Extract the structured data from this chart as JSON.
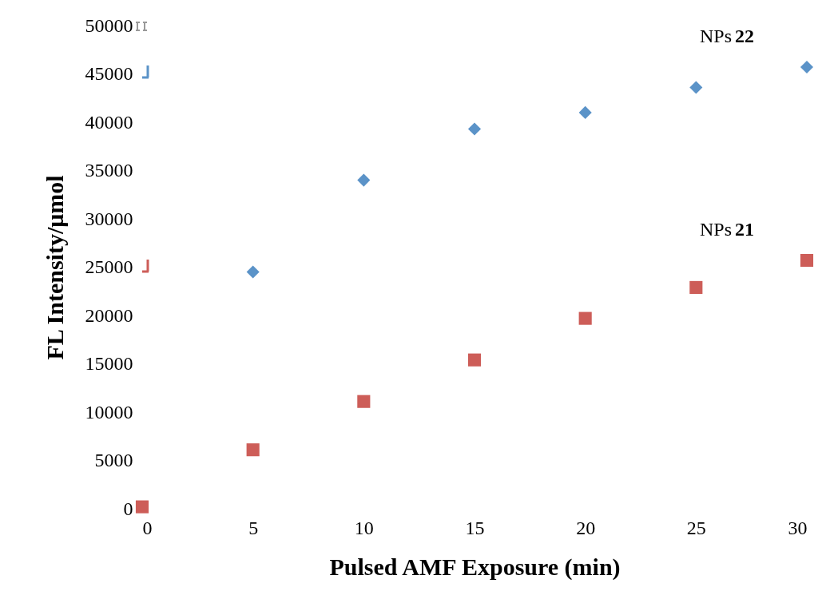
{
  "chart_data": {
    "type": "scatter",
    "xlabel": "Pulsed AMF Exposure (min)",
    "ylabel": "FL Intensity/μmol",
    "x": [
      0,
      5,
      10,
      15,
      20,
      25,
      30
    ],
    "series": [
      {
        "name": "NPs 22",
        "color": "#5b93c8",
        "marker": "diamond",
        "values": [
          null,
          24500,
          34000,
          39300,
          41000,
          43600,
          45700
        ]
      },
      {
        "name": "NPs 21",
        "color": "#cd5d58",
        "marker": "square",
        "values": [
          200,
          6100,
          11100,
          15400,
          19700,
          22900,
          25700
        ]
      }
    ],
    "xlim": [
      0,
      30
    ],
    "xticks": [
      0,
      5,
      10,
      15,
      20,
      25,
      30
    ],
    "ylim": [
      0,
      50000
    ],
    "yticks": [
      0,
      5000,
      10000,
      15000,
      20000,
      25000,
      30000,
      35000,
      40000,
      45000,
      50000
    ],
    "grid": false
  }
}
